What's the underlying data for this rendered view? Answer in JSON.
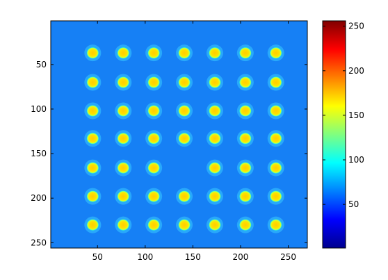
{
  "chart_data": {
    "type": "heatmap",
    "image": {
      "xlim": [
        1,
        270
      ],
      "ylim": [
        1,
        256
      ],
      "y_direction": "reverse",
      "background_value": 60,
      "grid": false
    },
    "spots": {
      "columns_x": [
        45,
        77,
        109,
        141,
        173,
        205,
        237
      ],
      "rows_y": [
        37,
        70,
        102,
        133,
        166,
        198,
        230
      ],
      "peak_value": 180,
      "missing": [
        [
          4,
          3
        ]
      ]
    },
    "xaxis": {
      "ticks": [
        50,
        100,
        150,
        200,
        250
      ],
      "tick_labels": [
        "50",
        "100",
        "150",
        "200",
        "250"
      ]
    },
    "yaxis": {
      "ticks": [
        50,
        100,
        150,
        200,
        250
      ],
      "tick_labels": [
        "50",
        "100",
        "150",
        "200",
        "250"
      ]
    },
    "colorbar": {
      "colormap": "jet",
      "clim": [
        1,
        256
      ],
      "ticks": [
        50,
        100,
        150,
        200,
        250
      ],
      "tick_labels": [
        "50",
        "100",
        "150",
        "200",
        "250"
      ],
      "placement": "right"
    }
  }
}
